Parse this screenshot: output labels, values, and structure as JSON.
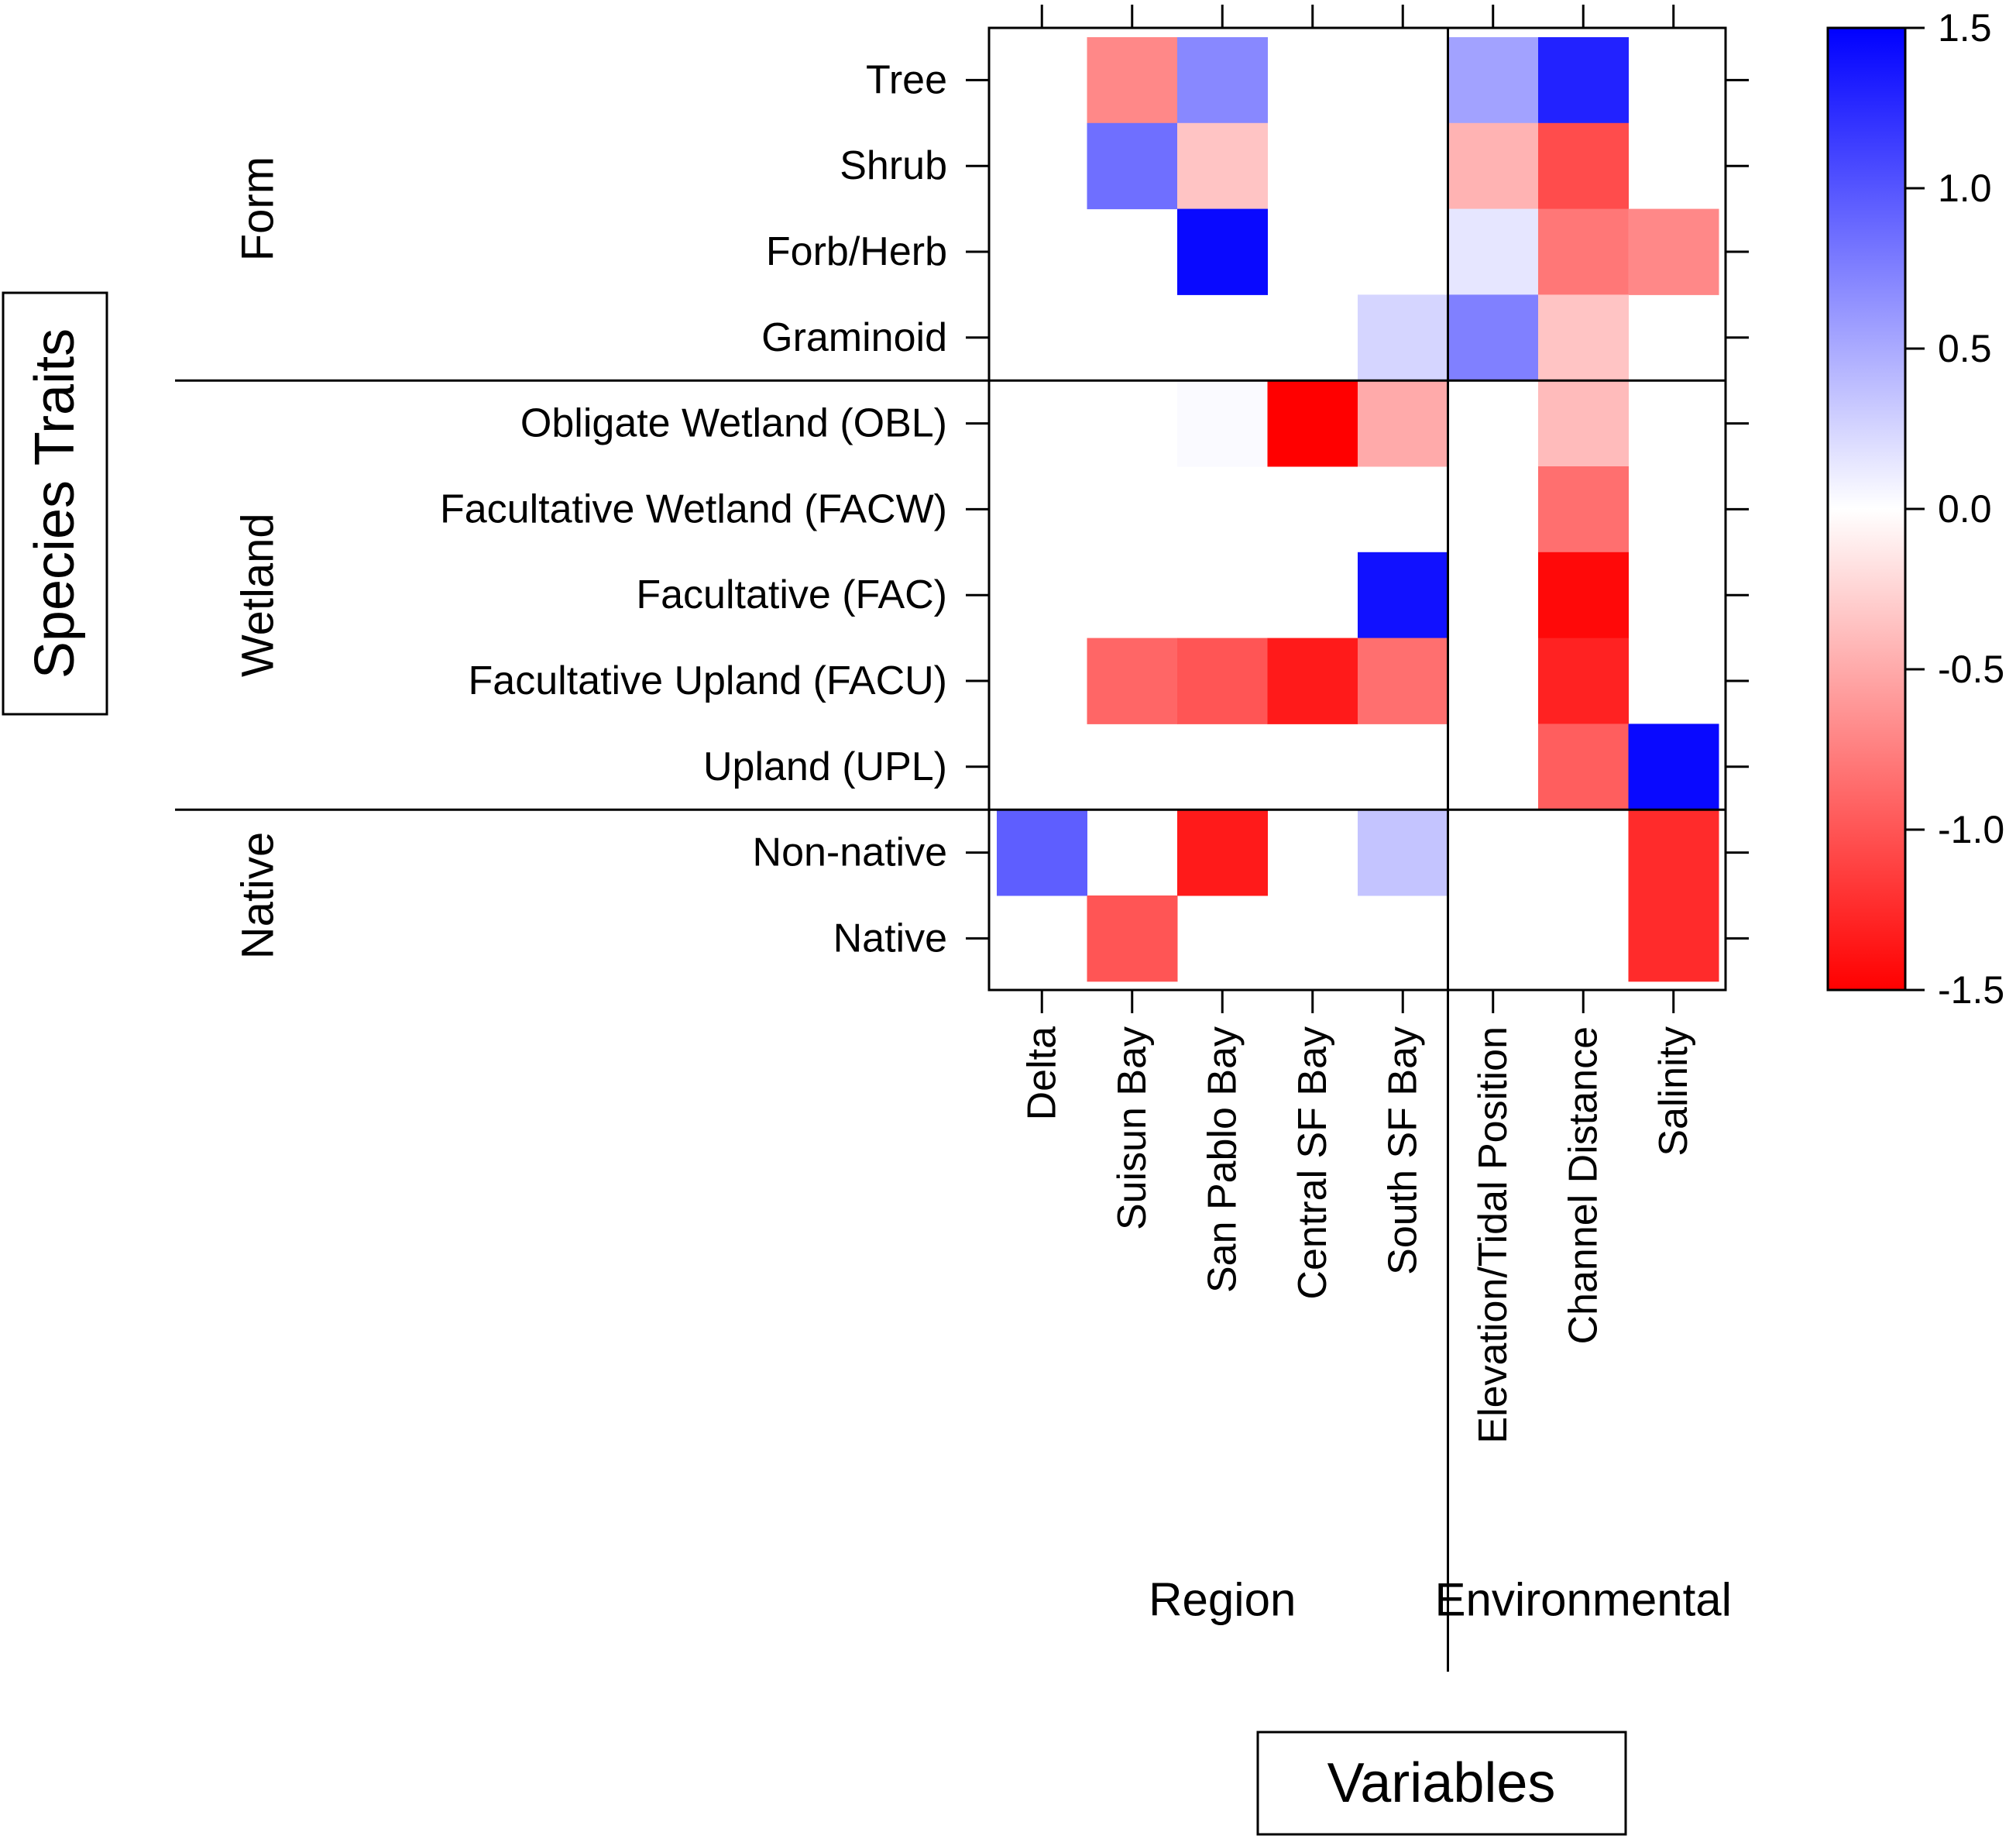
{
  "chart_data": {
    "type": "heatmap",
    "y_title": "Species Traits",
    "x_title": "Variables",
    "row_groups": [
      {
        "label": "Form",
        "rows": [
          "Tree",
          "Shrub",
          "Forb/Herb",
          "Graminoid"
        ]
      },
      {
        "label": "Wetland",
        "rows": [
          "Obligate Wetland (OBL)",
          "Facultative Wetland (FACW)",
          "Facultative (FAC)",
          "Facultative Upland (FACU)",
          "Upland (UPL)"
        ]
      },
      {
        "label": "Native",
        "rows": [
          "Non-native",
          "Native"
        ]
      }
    ],
    "column_groups": [
      {
        "label": "Region",
        "columns": [
          "Delta",
          "Suisun Bay",
          "San Pablo Bay",
          "Central SF Bay",
          "South SF Bay"
        ]
      },
      {
        "label": "Environmental",
        "columns": [
          "Elevation/Tidal Position",
          "Channel Distance",
          "Salinity"
        ]
      }
    ],
    "values": [
      [
        null,
        -0.7,
        0.7,
        null,
        null,
        0.55,
        1.3,
        null
      ],
      [
        null,
        0.85,
        -0.35,
        null,
        null,
        -0.45,
        -1.05,
        null
      ],
      [
        null,
        null,
        1.45,
        null,
        null,
        0.15,
        -0.8,
        -0.7
      ],
      [
        null,
        null,
        null,
        null,
        0.25,
        0.75,
        -0.35,
        null
      ],
      [
        null,
        null,
        0.03,
        -1.5,
        -0.5,
        null,
        -0.4,
        null
      ],
      [
        null,
        null,
        null,
        null,
        null,
        null,
        -0.85,
        null
      ],
      [
        null,
        null,
        null,
        null,
        1.4,
        null,
        -1.45,
        null
      ],
      [
        null,
        -0.9,
        -1.0,
        -1.35,
        -0.85,
        null,
        -1.3,
        null
      ],
      [
        null,
        null,
        null,
        null,
        null,
        null,
        -0.95,
        1.45
      ],
      [
        0.95,
        null,
        -1.35,
        null,
        0.35,
        null,
        null,
        -1.25
      ],
      [
        null,
        -1.0,
        null,
        null,
        null,
        null,
        null,
        -1.25
      ]
    ],
    "colorbar": {
      "min": -1.5,
      "max": 1.5,
      "ticks": [
        "1.5",
        "1.0",
        "0.5",
        "0.0",
        "-0.5",
        "-1.0",
        "-1.5"
      ],
      "low_color": "#ff0000",
      "mid_color": "#ffffff",
      "high_color": "#0000ff"
    }
  }
}
